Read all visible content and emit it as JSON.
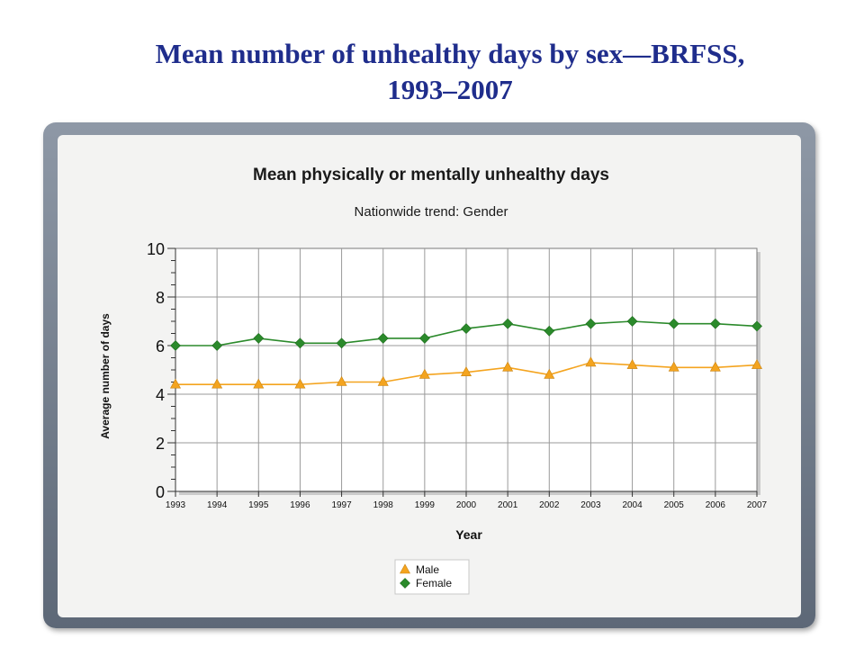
{
  "slide": {
    "title_line1": "Mean number of unhealthy days by sex—BRFSS,",
    "title_line2": "1993–2007"
  },
  "chart_data": {
    "type": "line",
    "title": "Mean physically or mentally unhealthy days",
    "subtitle": "Nationwide trend: Gender",
    "xlabel": "Year",
    "ylabel": "Average number of days",
    "ylim": [
      0,
      10
    ],
    "yticks": [
      0,
      2,
      4,
      6,
      8,
      10
    ],
    "grid": true,
    "legend_position": "bottom-center",
    "categories": [
      "1993",
      "1994",
      "1995",
      "1996",
      "1997",
      "1998",
      "1999",
      "2000",
      "2001",
      "2002",
      "2003",
      "2004",
      "2005",
      "2006",
      "2007"
    ],
    "series": [
      {
        "name": "Male",
        "color": "#f4a41f",
        "marker": "triangle",
        "values": [
          4.4,
          4.4,
          4.4,
          4.4,
          4.5,
          4.5,
          4.8,
          4.9,
          5.1,
          4.8,
          5.3,
          5.2,
          5.1,
          5.1,
          5.2
        ]
      },
      {
        "name": "Female",
        "color": "#2b8a2b",
        "marker": "diamond",
        "values": [
          6.0,
          6.0,
          6.3,
          6.1,
          6.1,
          6.3,
          6.3,
          6.7,
          6.9,
          6.6,
          6.9,
          7.0,
          6.9,
          6.9,
          6.8
        ]
      }
    ]
  }
}
